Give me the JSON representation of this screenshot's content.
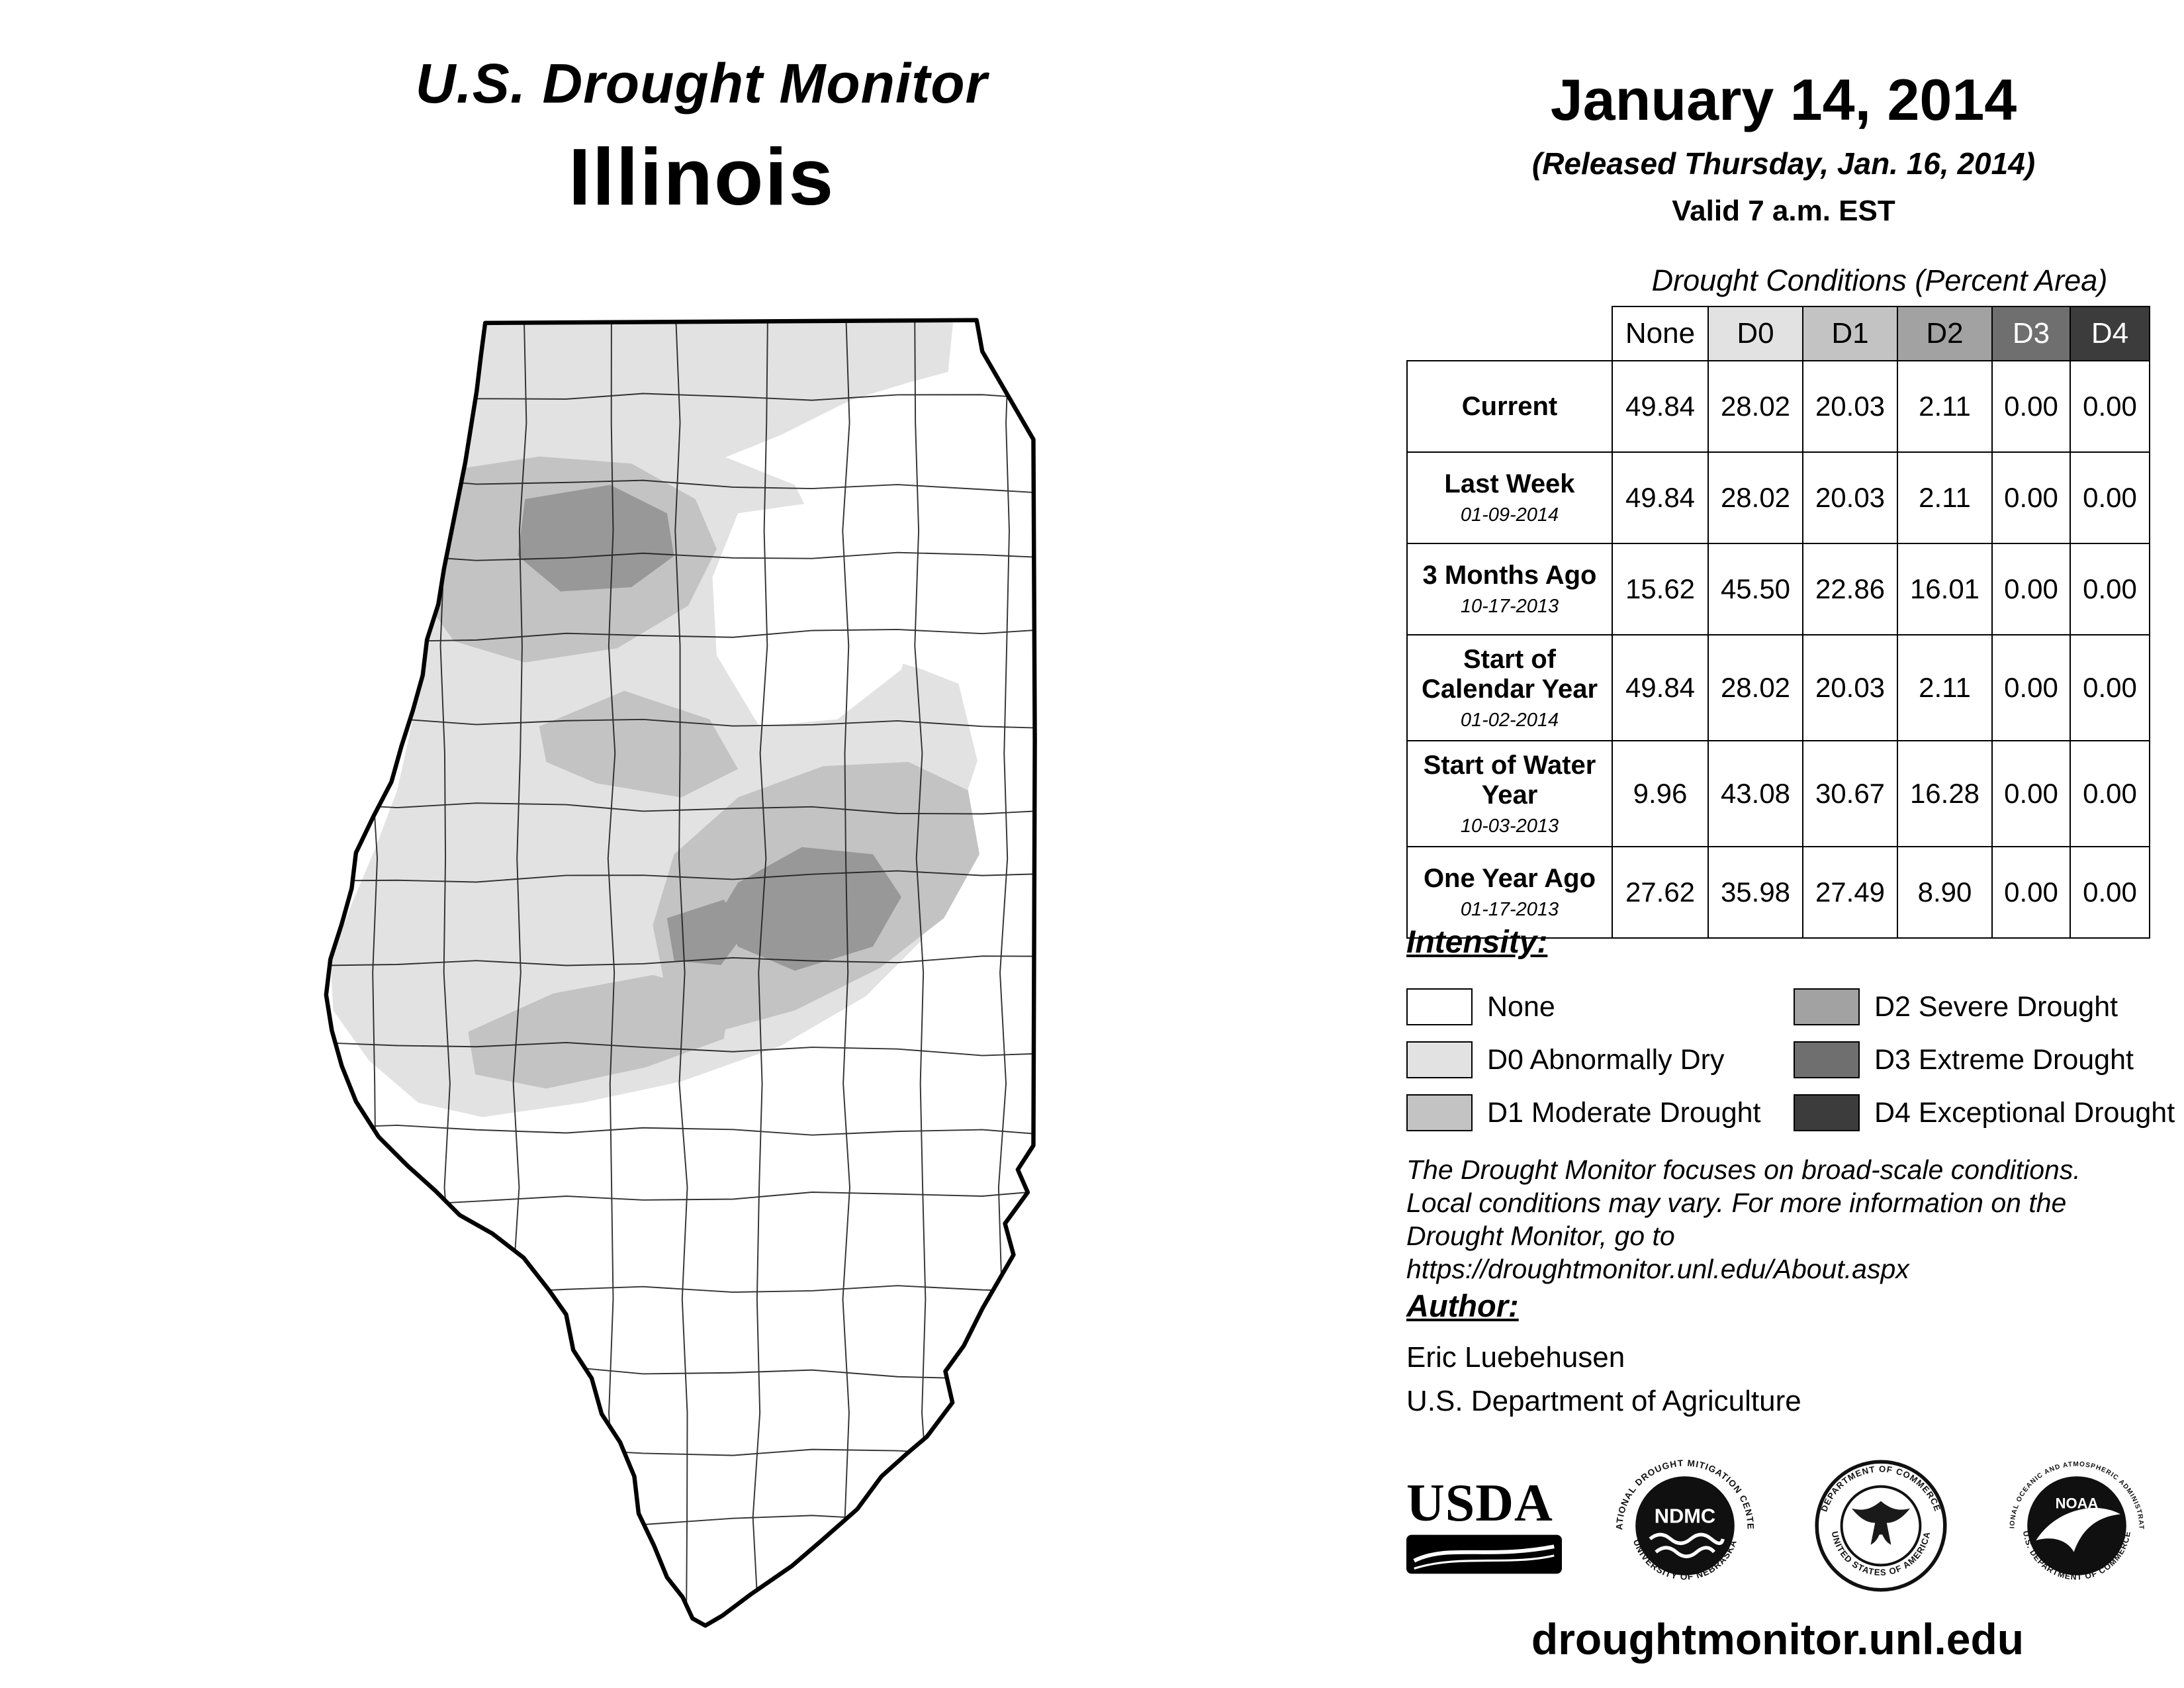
{
  "page": {
    "title": "U.S. Drought Monitor",
    "region": "Illinois"
  },
  "header": {
    "date": "January 14, 2014",
    "released": "(Released Thursday, Jan. 16, 2014)",
    "valid": "Valid 7 a.m. EST"
  },
  "table": {
    "caption": "Drought Conditions (Percent Area)",
    "columns": [
      "None",
      "D0",
      "D1",
      "D2",
      "D3",
      "D4"
    ],
    "rows": [
      {
        "label": "Current",
        "date": "",
        "values": [
          "49.84",
          "28.02",
          "20.03",
          "2.11",
          "0.00",
          "0.00"
        ]
      },
      {
        "label": "Last Week",
        "date": "01-09-2014",
        "values": [
          "49.84",
          "28.02",
          "20.03",
          "2.11",
          "0.00",
          "0.00"
        ]
      },
      {
        "label": "3 Months Ago",
        "date": "10-17-2013",
        "values": [
          "15.62",
          "45.50",
          "22.86",
          "16.01",
          "0.00",
          "0.00"
        ]
      },
      {
        "label": "Start of Calendar Year",
        "date": "01-02-2014",
        "values": [
          "49.84",
          "28.02",
          "20.03",
          "2.11",
          "0.00",
          "0.00"
        ]
      },
      {
        "label": "Start of Water Year",
        "date": "10-03-2013",
        "values": [
          "9.96",
          "43.08",
          "30.67",
          "16.28",
          "0.00",
          "0.00"
        ]
      },
      {
        "label": "One Year Ago",
        "date": "01-17-2013",
        "values": [
          "27.62",
          "35.98",
          "27.49",
          "8.90",
          "0.00",
          "0.00"
        ]
      }
    ]
  },
  "legend": {
    "title": "Intensity:",
    "items": [
      {
        "code": "None",
        "label": "None",
        "color": "#ffffff",
        "text": "#000000"
      },
      {
        "code": "D0",
        "label": "D0 Abnormally Dry",
        "color": "#e2e2e2",
        "text": "#000000"
      },
      {
        "code": "D1",
        "label": "D1 Moderate Drought",
        "color": "#c3c3c3",
        "text": "#000000"
      },
      {
        "code": "D2",
        "label": "D2 Severe Drought",
        "color": "#a2a2a2",
        "text": "#000000"
      },
      {
        "code": "D3",
        "label": "D3 Extreme Drought",
        "color": "#6f6f6f",
        "text": "#ffffff"
      },
      {
        "code": "D4",
        "label": "D4 Exceptional Drought",
        "color": "#3c3c3c",
        "text": "#ffffff"
      }
    ]
  },
  "disclaimer": [
    "The Drought Monitor focuses on broad-scale conditions.",
    "Local conditions may vary. For more information on the",
    "Drought Monitor, go to https://droughtmonitor.unl.edu/About.aspx"
  ],
  "author": {
    "title": "Author:",
    "name": "Eric Luebehusen",
    "org": "U.S. Department of Agriculture"
  },
  "logos": {
    "usda": {
      "text": "USDA"
    },
    "ndmc": {
      "text": "NDMC",
      "ring_top": "NATIONAL DROUGHT MITIGATION CENTER",
      "ring_bottom": "UNIVERSITY OF NEBRASKA"
    },
    "commerce": {
      "ring_top": "DEPARTMENT OF COMMERCE",
      "ring_bottom": "UNITED STATES OF AMERICA"
    },
    "noaa": {
      "text": "NOAA",
      "ring_top": "NATIONAL OCEANIC AND ATMOSPHERIC ADMINISTRATION",
      "ring_bottom": "U.S. DEPARTMENT OF COMMERCE"
    }
  },
  "footer": {
    "url": "droughtmonitor.unl.edu"
  }
}
